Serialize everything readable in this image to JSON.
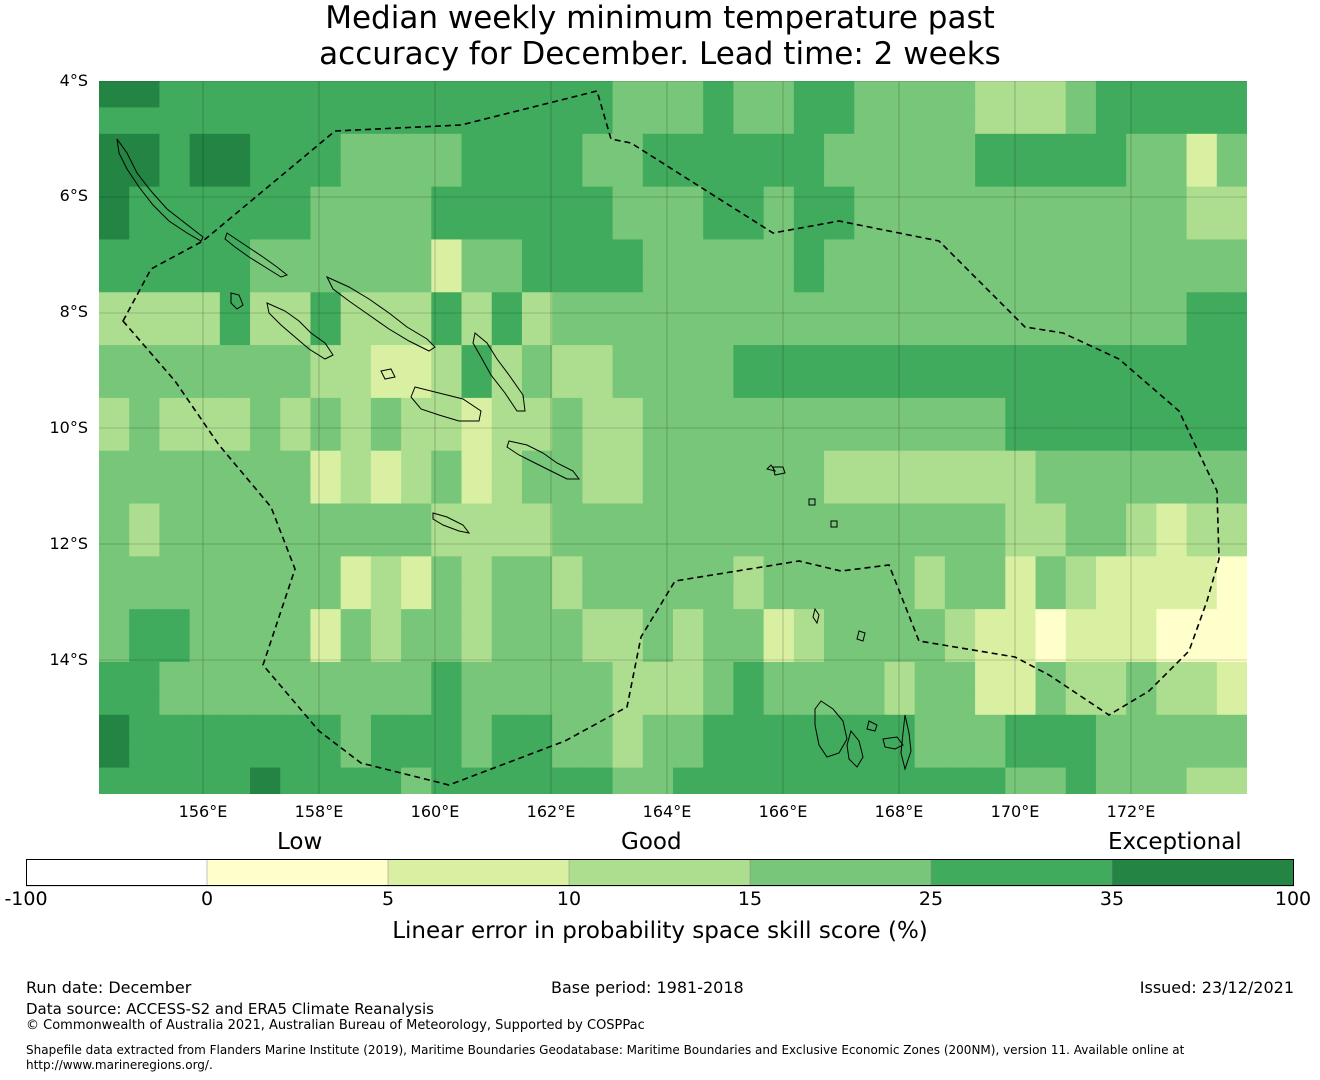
{
  "title": {
    "line1": "Median weekly minimum temperature past",
    "line2": "accuracy for December. Lead time: 2 weeks"
  },
  "map": {
    "y_axis_labels": [
      "4°S",
      "6°S",
      "8°S",
      "10°S",
      "12°S",
      "14°S"
    ],
    "x_axis_labels": [
      "156°E",
      "158°E",
      "160°E",
      "162°E",
      "164°E",
      "166°E",
      "168°E",
      "170°E",
      "172°E"
    ],
    "colors": {
      "land_outline": "#000000",
      "gridline": "#000000",
      "eez_boundary": "#000000"
    }
  },
  "colorbar": {
    "categories": [
      "Low",
      "Good",
      "Exceptional"
    ],
    "ticks": [
      "-100",
      "0",
      "5",
      "10",
      "15",
      "25",
      "35",
      "100"
    ],
    "colors": [
      "#ffffff",
      "#ffffcc",
      "#d9f0a3",
      "#addd8e",
      "#78c679",
      "#41ab5d",
      "#238443"
    ],
    "label": "Linear error in probability space skill score (%)"
  },
  "footer": {
    "run_date": "Run date: December",
    "base_period": "Base period: 1981-2018",
    "issued": "Issued: 23/12/2021",
    "data_source": "Data source: ACCESS-S2 and ERA5 Climate Reanalysis",
    "copyright": "© Commonwealth of Australia 2021, Australian Bureau of Meteorology, Supported by COSPPac",
    "shapefile_note": "Shapefile data extracted from Flanders Marine Institute (2019), Maritime Boundaries Geodatabase: Maritime Boundaries and Exclusive Economic Zones (200NM), version 11. Available online at http://www.marineregions.org/."
  }
}
